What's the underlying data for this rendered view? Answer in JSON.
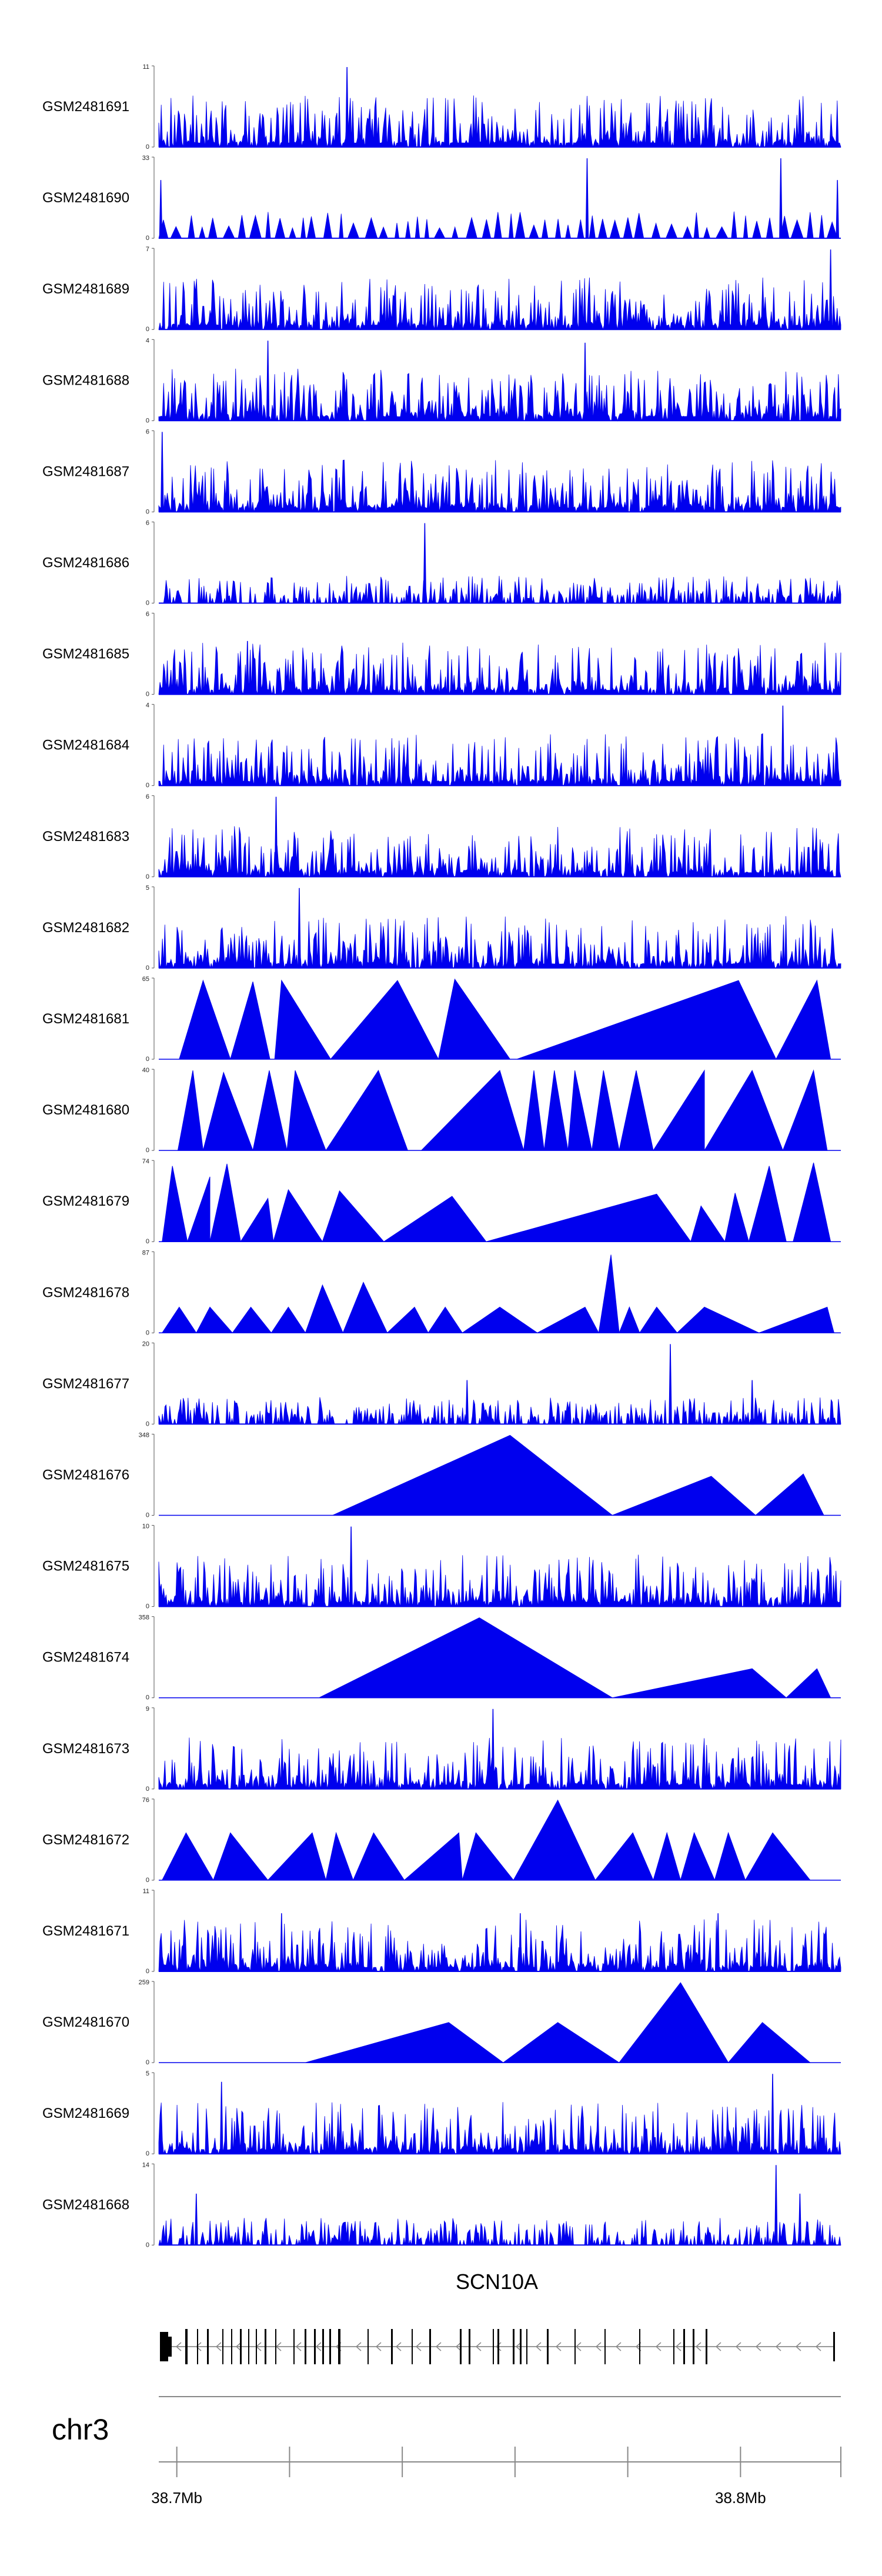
{
  "chart_data": {
    "type": "area",
    "title": "",
    "color": "#0000ee",
    "tracks": [
      {
        "name": "GSM2481691",
        "ymax": "11",
        "ylim": [
          0,
          11
        ],
        "style": "dense",
        "seed": 1,
        "peaks": [
          [
            0.276,
            11
          ]
        ]
      },
      {
        "name": "GSM2481690",
        "ymax": "33",
        "ylim": [
          0,
          33
        ],
        "style": "spiky",
        "seed": 2,
        "peaks": [
          [
            0.003,
            24
          ],
          [
            0.628,
            33
          ],
          [
            0.912,
            33
          ],
          [
            0.995,
            24
          ]
        ]
      },
      {
        "name": "GSM2481689",
        "ymax": "7",
        "ylim": [
          0,
          7
        ],
        "style": "dense",
        "seed": 3,
        "peaks": [
          [
            0.985,
            7
          ]
        ]
      },
      {
        "name": "GSM2481688",
        "ymax": "4",
        "ylim": [
          0,
          4
        ],
        "style": "dense",
        "seed": 4,
        "peaks": [
          [
            0.16,
            4
          ],
          [
            0.625,
            3.9
          ]
        ]
      },
      {
        "name": "GSM2481687",
        "ymax": "6",
        "ylim": [
          0,
          6
        ],
        "style": "dense",
        "seed": 5,
        "peaks": [
          [
            0.005,
            6
          ]
        ]
      },
      {
        "name": "GSM2481686",
        "ymax": "6",
        "ylim": [
          0,
          6
        ],
        "style": "sparse",
        "seed": 6,
        "peaks": [
          [
            0.39,
            6
          ]
        ]
      },
      {
        "name": "GSM2481685",
        "ymax": "6",
        "ylim": [
          0,
          6
        ],
        "style": "dense",
        "seed": 7,
        "peaks": [
          [
            0.13,
            4
          ]
        ]
      },
      {
        "name": "GSM2481684",
        "ymax": "4",
        "ylim": [
          0,
          4
        ],
        "style": "dense",
        "seed": 8,
        "peaks": [
          [
            0.915,
            4
          ]
        ]
      },
      {
        "name": "GSM2481683",
        "ymax": "6",
        "ylim": [
          0,
          6
        ],
        "style": "dense",
        "seed": 9,
        "peaks": [
          [
            0.172,
            6
          ]
        ]
      },
      {
        "name": "GSM2481682",
        "ymax": "5",
        "ylim": [
          0,
          5
        ],
        "style": "dense",
        "seed": 10,
        "peaks": [
          [
            0.206,
            5
          ]
        ]
      },
      {
        "name": "GSM2481681",
        "ymax": "65",
        "ylim": [
          0,
          65
        ],
        "style": "tri",
        "seed": 11,
        "tris": [
          [
            0.03,
            0.065,
            0.105,
            64
          ],
          [
            0.105,
            0.138,
            0.163,
            63
          ],
          [
            0.17,
            0.18,
            0.252,
            64
          ],
          [
            0.252,
            0.35,
            0.41,
            64
          ],
          [
            0.41,
            0.434,
            0.515,
            65
          ],
          [
            0.525,
            0.85,
            0.905,
            64
          ],
          [
            0.905,
            0.965,
            0.985,
            64
          ]
        ]
      },
      {
        "name": "GSM2481680",
        "ymax": "40",
        "ylim": [
          0,
          40
        ],
        "style": "tri",
        "seed": 12,
        "tris": [
          [
            0.028,
            0.05,
            0.065,
            40
          ],
          [
            0.065,
            0.095,
            0.138,
            39
          ],
          [
            0.138,
            0.162,
            0.188,
            40
          ],
          [
            0.188,
            0.2,
            0.245,
            40
          ],
          [
            0.245,
            0.322,
            0.365,
            40
          ],
          [
            0.385,
            0.5,
            0.535,
            40
          ],
          [
            0.535,
            0.55,
            0.565,
            40
          ],
          [
            0.565,
            0.58,
            0.6,
            40
          ],
          [
            0.6,
            0.61,
            0.635,
            40
          ],
          [
            0.635,
            0.652,
            0.675,
            40
          ],
          [
            0.675,
            0.7,
            0.725,
            40
          ],
          [
            0.725,
            0.8,
            0.8,
            40
          ],
          [
            0.8,
            0.87,
            0.915,
            40
          ],
          [
            0.915,
            0.96,
            0.98,
            40
          ]
        ]
      },
      {
        "name": "GSM2481679",
        "ymax": "74",
        "ylim": [
          0,
          74
        ],
        "style": "tri",
        "seed": 13,
        "tris": [
          [
            0.005,
            0.02,
            0.042,
            70
          ],
          [
            0.042,
            0.075,
            0.075,
            60
          ],
          [
            0.075,
            0.1,
            0.12,
            72
          ],
          [
            0.12,
            0.16,
            0.168,
            40
          ],
          [
            0.168,
            0.19,
            0.24,
            48
          ],
          [
            0.24,
            0.265,
            0.33,
            47
          ],
          [
            0.33,
            0.43,
            0.48,
            42
          ],
          [
            0.48,
            0.73,
            0.78,
            44
          ],
          [
            0.78,
            0.795,
            0.83,
            33
          ],
          [
            0.83,
            0.845,
            0.865,
            45
          ],
          [
            0.865,
            0.895,
            0.92,
            70
          ],
          [
            0.93,
            0.96,
            0.985,
            73
          ]
        ]
      },
      {
        "name": "GSM2481678",
        "ymax": "87",
        "ylim": [
          0,
          87
        ],
        "style": "tri",
        "seed": 14,
        "tris": [
          [
            0.005,
            0.03,
            0.055,
            28
          ],
          [
            0.055,
            0.075,
            0.108,
            28
          ],
          [
            0.108,
            0.135,
            0.165,
            28
          ],
          [
            0.165,
            0.19,
            0.215,
            28
          ],
          [
            0.215,
            0.24,
            0.27,
            52
          ],
          [
            0.27,
            0.3,
            0.335,
            55
          ],
          [
            0.335,
            0.375,
            0.395,
            28
          ],
          [
            0.395,
            0.42,
            0.445,
            28
          ],
          [
            0.445,
            0.5,
            0.555,
            28
          ],
          [
            0.555,
            0.625,
            0.645,
            28
          ],
          [
            0.645,
            0.663,
            0.675,
            85
          ],
          [
            0.675,
            0.69,
            0.705,
            28
          ],
          [
            0.705,
            0.73,
            0.76,
            28
          ],
          [
            0.76,
            0.8,
            0.88,
            28
          ],
          [
            0.88,
            0.98,
            0.99,
            28
          ]
        ]
      },
      {
        "name": "GSM2481677",
        "ymax": "20",
        "ylim": [
          0,
          20
        ],
        "style": "sparse",
        "seed": 15,
        "peaks": [
          [
            0.452,
            11
          ],
          [
            0.75,
            20
          ],
          [
            0.87,
            11
          ]
        ]
      },
      {
        "name": "GSM2481676",
        "ymax": "348",
        "ylim": [
          0,
          348
        ],
        "style": "tri",
        "seed": 16,
        "tris": [
          [
            0.255,
            0.515,
            0.665,
            348
          ],
          [
            0.665,
            0.81,
            0.875,
            170
          ],
          [
            0.875,
            0.945,
            0.975,
            180
          ]
        ]
      },
      {
        "name": "GSM2481675",
        "ymax": "10",
        "ylim": [
          0,
          10
        ],
        "style": "dense",
        "seed": 17,
        "peaks": [
          [
            0.282,
            10
          ]
        ]
      },
      {
        "name": "GSM2481674",
        "ymax": "358",
        "ylim": [
          0,
          358
        ],
        "style": "tri",
        "seed": 18,
        "tris": [
          [
            0.235,
            0.47,
            0.665,
            358
          ],
          [
            0.665,
            0.87,
            0.92,
            130
          ],
          [
            0.92,
            0.965,
            0.985,
            130
          ]
        ]
      },
      {
        "name": "GSM2481673",
        "ymax": "9",
        "ylim": [
          0,
          9
        ],
        "style": "dense",
        "seed": 19,
        "peaks": [
          [
            0.49,
            9
          ]
        ]
      },
      {
        "name": "GSM2481672",
        "ymax": "76",
        "ylim": [
          0,
          76
        ],
        "style": "tri",
        "seed": 20,
        "tris": [
          [
            0.005,
            0.04,
            0.08,
            45
          ],
          [
            0.08,
            0.105,
            0.16,
            45
          ],
          [
            0.16,
            0.225,
            0.245,
            45
          ],
          [
            0.245,
            0.26,
            0.285,
            45
          ],
          [
            0.285,
            0.315,
            0.36,
            45
          ],
          [
            0.36,
            0.44,
            0.445,
            45
          ],
          [
            0.445,
            0.465,
            0.52,
            45
          ],
          [
            0.52,
            0.585,
            0.64,
            76
          ],
          [
            0.64,
            0.695,
            0.725,
            45
          ],
          [
            0.725,
            0.745,
            0.765,
            45
          ],
          [
            0.765,
            0.785,
            0.815,
            45
          ],
          [
            0.815,
            0.835,
            0.86,
            45
          ],
          [
            0.86,
            0.9,
            0.955,
            45
          ]
        ]
      },
      {
        "name": "GSM2481671",
        "ymax": "11",
        "ylim": [
          0,
          11
        ],
        "style": "dense",
        "seed": 21,
        "peaks": [
          [
            0.18,
            8
          ],
          [
            0.53,
            8
          ],
          [
            0.82,
            8
          ]
        ]
      },
      {
        "name": "GSM2481670",
        "ymax": "259",
        "ylim": [
          0,
          259
        ],
        "style": "tri",
        "seed": 22,
        "tris": [
          [
            0.215,
            0.425,
            0.505,
            130
          ],
          [
            0.505,
            0.585,
            0.675,
            130
          ],
          [
            0.675,
            0.765,
            0.835,
            259
          ],
          [
            0.835,
            0.885,
            0.955,
            130
          ]
        ]
      },
      {
        "name": "GSM2481669",
        "ymax": "5",
        "ylim": [
          0,
          5
        ],
        "style": "dense",
        "seed": 23,
        "peaks": [
          [
            0.092,
            4.5
          ],
          [
            0.9,
            5
          ]
        ]
      },
      {
        "name": "GSM2481668",
        "ymax": "14",
        "ylim": [
          0,
          14
        ],
        "style": "sparse",
        "seed": 24,
        "peaks": [
          [
            0.905,
            14
          ],
          [
            0.055,
            9
          ],
          [
            0.94,
            9
          ]
        ]
      }
    ],
    "gene": {
      "name": "SCN10A",
      "strand": "-"
    },
    "chromosome": "chr3",
    "xaxis": {
      "range_mb": [
        38.6968,
        38.8178
      ],
      "ticks": [
        38.7,
        38.72,
        38.74,
        38.76,
        38.78,
        38.8,
        38.8178
      ],
      "labels": [
        {
          "value": 38.7,
          "text": "38.7Mb"
        },
        {
          "value": 38.8,
          "text": "38.8Mb"
        }
      ]
    }
  }
}
